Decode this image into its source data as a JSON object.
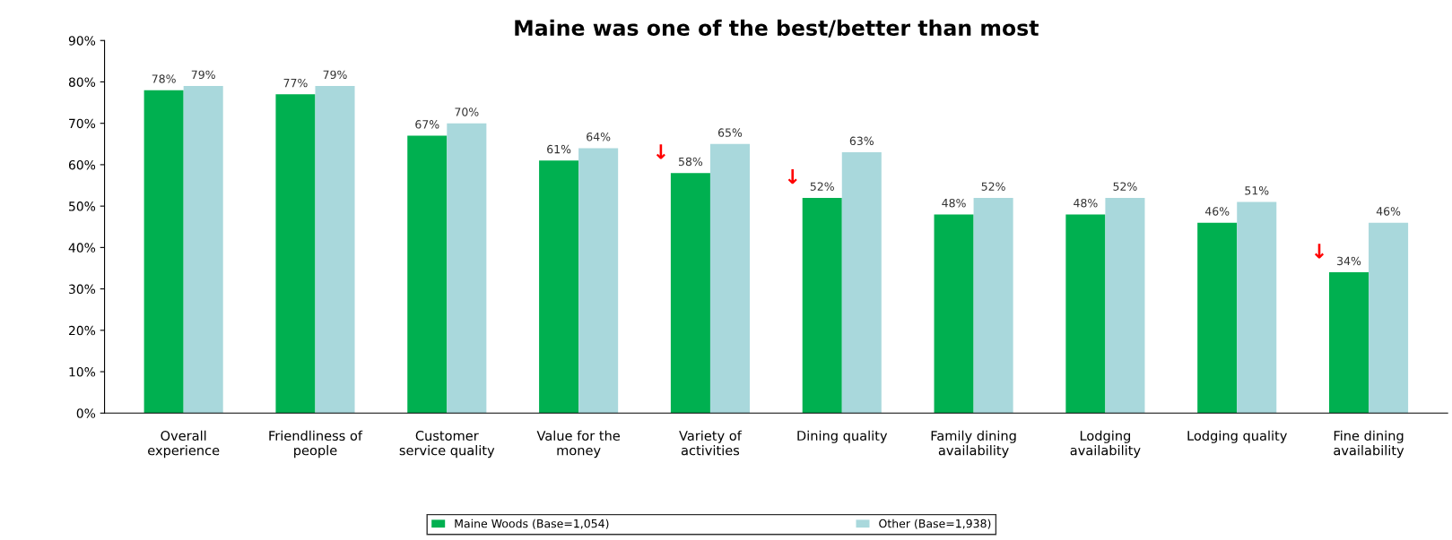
{
  "chart_data": {
    "type": "bar",
    "title": "Maine was one of the best/better than most",
    "categories": [
      "Overall\nexperience",
      "Friendliness of\npeople",
      "Customer\nservice quality",
      "Value for the\nmoney",
      "Variety of\nactivities",
      "Dining quality",
      "Family dining\navailability",
      "Lodging\navailability",
      "Lodging quality",
      "Fine dining\navailability"
    ],
    "series": [
      {
        "name": "Maine Woods (Base=1,054)",
        "color": "#00b050",
        "values": [
          78,
          77,
          67,
          61,
          58,
          52,
          48,
          48,
          46,
          34
        ]
      },
      {
        "name": "Other (Base=1,938)",
        "color": "#a9d8dc",
        "values": [
          79,
          79,
          70,
          64,
          65,
          63,
          52,
          52,
          51,
          46
        ]
      }
    ],
    "value_labels": [
      [
        "78%",
        "77%",
        "67%",
        "61%",
        "58%",
        "52%",
        "48%",
        "48%",
        "46%",
        "34%"
      ],
      [
        "79%",
        "79%",
        "70%",
        "64%",
        "65%",
        "63%",
        "52%",
        "52%",
        "51%",
        "46%"
      ]
    ],
    "ylim": [
      0,
      90
    ],
    "yticks": [
      {
        "value": 0,
        "label": "0%"
      },
      {
        "value": 10,
        "label": "10%"
      },
      {
        "value": 20,
        "label": "20%"
      },
      {
        "value": 30,
        "label": "30%"
      },
      {
        "value": 40,
        "label": "40%"
      },
      {
        "value": 50,
        "label": "50%"
      },
      {
        "value": 60,
        "label": "60%"
      },
      {
        "value": 70,
        "label": "70%"
      },
      {
        "value": 80,
        "label": "80%"
      },
      {
        "value": 90,
        "label": "90%"
      }
    ],
    "annotations": [
      {
        "text": "↓",
        "x": "Variety of\nactivities",
        "y": 58
      },
      {
        "text": "↓",
        "x": "Dining quality",
        "y": 52
      },
      {
        "text": "↓",
        "x": "Fine dining\navailability",
        "y": 34
      }
    ],
    "legend": "bottom",
    "grid": false
  }
}
